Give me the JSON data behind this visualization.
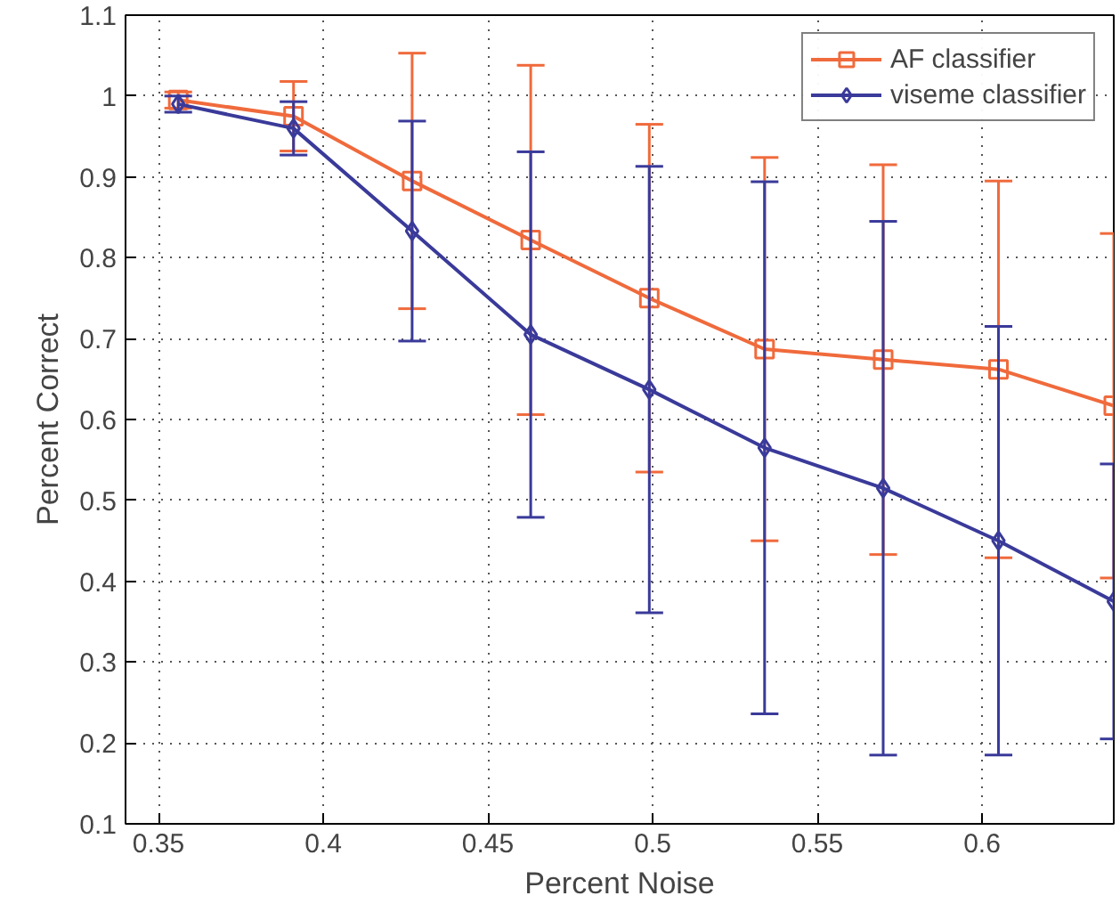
{
  "chart_data": {
    "type": "line",
    "xlabel": "Percent Noise",
    "ylabel": "Percent Correct",
    "x": [
      0.356,
      0.391,
      0.427,
      0.463,
      0.499,
      0.534,
      0.57,
      0.605,
      0.64
    ],
    "xlim": [
      0.34,
      0.64
    ],
    "xticks": [
      0.35,
      0.4,
      0.45,
      0.5,
      0.55,
      0.6
    ],
    "ylim": [
      0.1,
      1.1
    ],
    "yticks": [
      0.1,
      0.2,
      0.3,
      0.4,
      0.5,
      0.6,
      0.7,
      0.8,
      0.9,
      1,
      1.1
    ],
    "grid": true,
    "legend": "top right",
    "series": [
      {
        "name": "AF classifier",
        "color": "#f06a3c",
        "marker": "square",
        "values": [
          0.995,
          0.975,
          0.895,
          0.822,
          0.75,
          0.687,
          0.674,
          0.662,
          0.617
        ],
        "errors": [
          0.01,
          0.043,
          0.158,
          0.216,
          0.215,
          0.237,
          0.241,
          0.233,
          0.213
        ]
      },
      {
        "name": "viseme classifier",
        "color": "#3a3a9a",
        "marker": "diamond",
        "values": [
          0.99,
          0.96,
          0.833,
          0.705,
          0.637,
          0.565,
          0.515,
          0.45,
          0.375
        ],
        "errors": [
          0.01,
          0.033,
          0.136,
          0.226,
          0.276,
          0.329,
          0.33,
          0.265,
          0.17
        ]
      }
    ]
  }
}
